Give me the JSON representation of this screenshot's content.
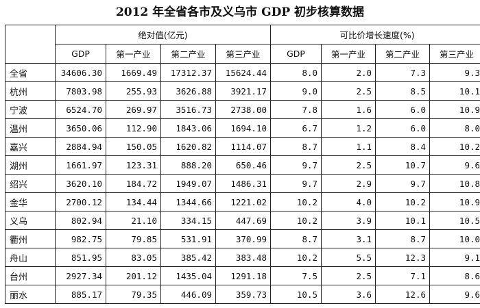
{
  "title": "2012 年全省各市及义乌市 GDP 初步核算数据",
  "groups": {
    "absolute": "绝对值(亿元)",
    "growth": "可比价增长速度(%)"
  },
  "columns": [
    "GDP",
    "第一产业",
    "第二产业",
    "第三产业",
    "GDP",
    "第一产业",
    "第二产业",
    "第三产业"
  ],
  "rows": [
    {
      "region": "全省",
      "values": [
        "34606.30",
        "1669.49",
        "17312.37",
        "15624.44",
        "8.0",
        "2.0",
        "7.3",
        "9.3"
      ]
    },
    {
      "region": "杭州",
      "values": [
        "7803.98",
        "255.93",
        "3626.88",
        "3921.17",
        "9.0",
        "2.5",
        "8.5",
        "10.1"
      ]
    },
    {
      "region": "宁波",
      "values": [
        "6524.70",
        "269.97",
        "3516.73",
        "2738.00",
        "7.8",
        "1.6",
        "6.0",
        "10.9"
      ]
    },
    {
      "region": "温州",
      "values": [
        "3650.06",
        "112.90",
        "1843.06",
        "1694.10",
        "6.7",
        "1.2",
        "6.0",
        "8.0"
      ]
    },
    {
      "region": "嘉兴",
      "values": [
        "2884.94",
        "150.05",
        "1620.82",
        "1114.07",
        "8.7",
        "1.1",
        "8.4",
        "10.2"
      ]
    },
    {
      "region": "湖州",
      "values": [
        "1661.97",
        "123.31",
        "888.20",
        "650.46",
        "9.7",
        "2.5",
        "10.7",
        "9.6"
      ]
    },
    {
      "region": "绍兴",
      "values": [
        "3620.10",
        "184.72",
        "1949.07",
        "1486.31",
        "9.7",
        "2.9",
        "9.7",
        "10.8"
      ]
    },
    {
      "region": "金华",
      "values": [
        "2700.12",
        "134.44",
        "1344.66",
        "1221.02",
        "10.2",
        "4.0",
        "10.2",
        "10.9"
      ]
    },
    {
      "region": "义乌",
      "values": [
        "802.94",
        "21.10",
        "334.15",
        "447.69",
        "10.2",
        "3.9",
        "10.1",
        "10.5"
      ]
    },
    {
      "region": "衢州",
      "values": [
        "982.75",
        "79.85",
        "531.91",
        "370.99",
        "8.7",
        "3.1",
        "8.7",
        "10.0"
      ]
    },
    {
      "region": "舟山",
      "values": [
        "851.95",
        "83.05",
        "385.42",
        "383.48",
        "10.2",
        "5.5",
        "12.3",
        "9.1"
      ]
    },
    {
      "region": "台州",
      "values": [
        "2927.34",
        "201.12",
        "1435.04",
        "1291.18",
        "7.5",
        "2.5",
        "7.1",
        "8.6"
      ]
    },
    {
      "region": "丽水",
      "values": [
        "885.17",
        "79.35",
        "446.09",
        "359.73",
        "10.5",
        "3.6",
        "12.6",
        "9.6"
      ]
    }
  ]
}
